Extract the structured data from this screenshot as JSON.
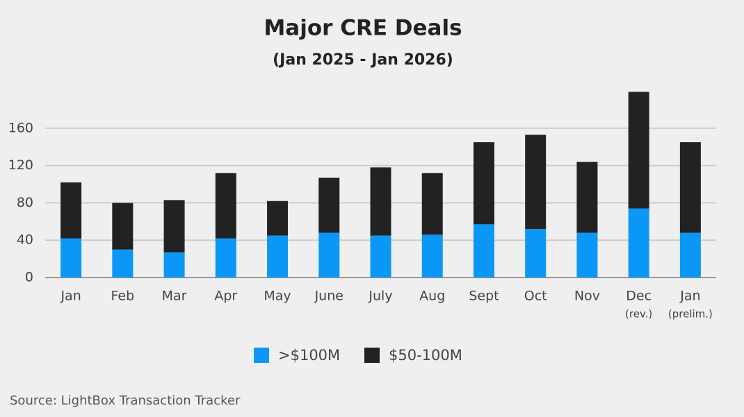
{
  "chart_data": {
    "type": "stacked_bar",
    "title": "Major CRE Deals",
    "subtitle": "(Jan 2025 - Jan 2026)",
    "categories": [
      "Jan",
      "Feb",
      "Mar",
      "Apr",
      "May",
      "June",
      "July",
      "Aug",
      "Sept",
      "Oct",
      "Nov",
      "Dec",
      "Jan"
    ],
    "category_notes": [
      null,
      null,
      null,
      null,
      null,
      null,
      null,
      null,
      null,
      null,
      null,
      "(rev.)",
      "(prelim.)"
    ],
    "series": [
      {
        "name": ">$100M",
        "color": "#0b97f6",
        "values": [
          42,
          30,
          27,
          42,
          45,
          48,
          45,
          46,
          57,
          52,
          48,
          74,
          48
        ]
      },
      {
        "name": "$50-100M",
        "color": "#222222",
        "values": [
          60,
          50,
          56,
          70,
          37,
          59,
          73,
          66,
          88,
          101,
          76,
          125,
          97
        ]
      }
    ],
    "ylim": [
      0,
      200
    ],
    "yticks": [
      0,
      40,
      80,
      120,
      160
    ],
    "grid": true,
    "legend": "bottom",
    "source": "Source: LightBox Transaction Tracker"
  }
}
